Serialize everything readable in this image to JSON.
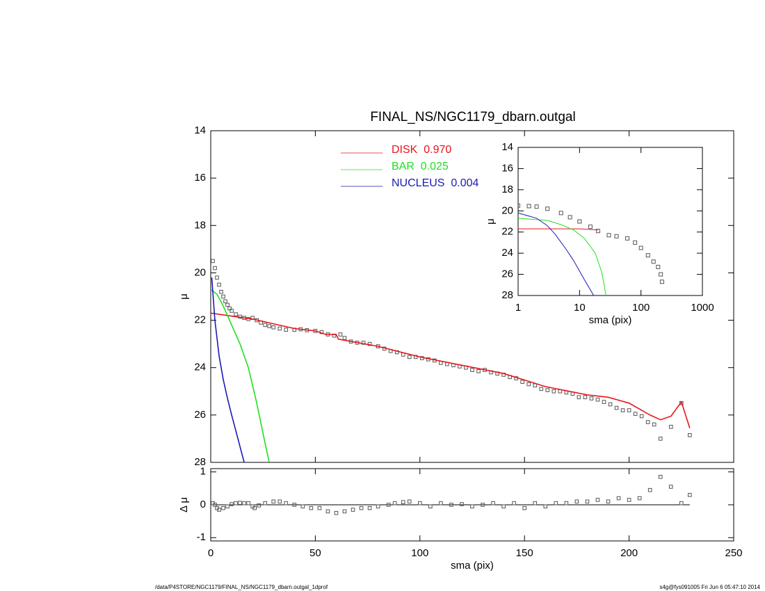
{
  "chart_data": [
    {
      "type": "line",
      "title": "FINAL_NS/NGC1179_dbarn.outgal",
      "ylabel": "μ",
      "xlim": [
        0,
        250
      ],
      "xticks": [
        0,
        50,
        100,
        150,
        200,
        250
      ],
      "ylim": [
        14,
        28
      ],
      "yticks": [
        14,
        16,
        18,
        20,
        22,
        24,
        26,
        28
      ],
      "yinverted": true,
      "series": [
        {
          "style": "markers",
          "color": "#555555",
          "x": [
            1,
            2,
            3,
            4,
            5,
            6,
            7,
            8,
            9,
            10,
            12,
            14,
            16,
            18,
            20,
            22,
            24,
            26,
            28,
            30,
            33,
            36,
            40,
            43,
            46,
            50,
            53,
            56,
            59,
            62,
            64,
            67,
            70,
            73,
            76,
            80,
            83,
            86,
            89,
            92,
            95,
            98,
            101,
            104,
            107,
            110,
            113,
            116,
            119,
            122,
            125,
            128,
            131,
            134,
            137,
            140,
            143,
            146,
            149,
            152,
            155,
            158,
            161,
            164,
            167,
            170,
            173,
            176,
            179,
            182,
            185,
            188,
            191,
            194,
            197,
            200,
            203,
            206,
            209,
            212,
            215,
            220,
            225,
            229
          ],
          "values": [
            19.5,
            19.8,
            20.2,
            20.5,
            20.8,
            21.0,
            21.2,
            21.35,
            21.5,
            21.6,
            21.75,
            21.85,
            21.9,
            21.95,
            21.9,
            22.0,
            22.1,
            22.2,
            22.25,
            22.3,
            22.35,
            22.4,
            22.4,
            22.38,
            22.42,
            22.45,
            22.5,
            22.6,
            22.65,
            22.6,
            22.75,
            22.9,
            22.95,
            22.95,
            23.0,
            23.1,
            23.2,
            23.3,
            23.35,
            23.45,
            23.55,
            23.55,
            23.6,
            23.65,
            23.7,
            23.8,
            23.85,
            23.9,
            23.95,
            24.0,
            24.1,
            24.15,
            24.1,
            24.2,
            24.25,
            24.3,
            24.4,
            24.45,
            24.6,
            24.7,
            24.75,
            24.9,
            24.95,
            25.0,
            25.0,
            25.05,
            25.1,
            25.25,
            25.25,
            25.3,
            25.35,
            25.45,
            25.55,
            25.7,
            25.8,
            25.8,
            25.95,
            26.05,
            26.3,
            26.4,
            27.0,
            26.5,
            25.5,
            26.85
          ]
        },
        {
          "style": "line",
          "name": "DISK  0.970",
          "color": "#e8141a",
          "x": [
            0,
            20,
            40,
            50,
            55,
            60,
            61,
            80,
            100,
            120,
            140,
            160,
            180,
            190,
            200,
            210,
            215,
            220,
            225,
            229
          ],
          "values": [
            21.7,
            21.95,
            22.35,
            22.45,
            22.6,
            22.6,
            22.8,
            23.1,
            23.55,
            23.9,
            24.25,
            24.8,
            25.15,
            25.25,
            25.5,
            26.0,
            26.2,
            26.05,
            25.45,
            26.55
          ]
        },
        {
          "style": "line",
          "name": "BAR  0.025",
          "color": "#1ee01e",
          "x": [
            0,
            3,
            6,
            10,
            14,
            18,
            22,
            26,
            28
          ],
          "values": [
            20.7,
            20.9,
            21.4,
            22.2,
            23.0,
            24.0,
            25.5,
            27.2,
            28.0
          ]
        },
        {
          "style": "line",
          "name": "NUCLEUS  0.004",
          "color": "#1a1ab4",
          "x": [
            0.5,
            2,
            4,
            6,
            8,
            10,
            13,
            16
          ],
          "values": [
            20.2,
            22.0,
            23.5,
            24.5,
            25.3,
            26.0,
            27.0,
            28.0
          ]
        }
      ]
    },
    {
      "type": "scatter",
      "xlabel": "sma (pix)",
      "ylabel": "Δ μ",
      "xlim": [
        0,
        250
      ],
      "xticks": [
        0,
        50,
        100,
        150,
        200,
        250
      ],
      "ylim": [
        -1.1,
        1.1
      ],
      "yticks": [
        -1,
        0,
        1
      ],
      "hline": 0,
      "series": [
        {
          "style": "markers",
          "color": "#555555",
          "x": [
            1,
            2,
            3,
            4,
            6,
            8,
            10,
            12,
            14,
            16,
            18,
            20,
            21,
            23,
            26,
            30,
            33,
            36,
            40,
            44,
            48,
            52,
            56,
            60,
            64,
            68,
            72,
            76,
            80,
            85,
            88,
            92,
            95,
            100,
            105,
            110,
            115,
            120,
            125,
            130,
            135,
            140,
            145,
            150,
            155,
            160,
            165,
            170,
            175,
            180,
            185,
            190,
            195,
            200,
            205,
            210,
            215,
            220,
            225,
            229
          ],
          "values": [
            0.05,
            0.0,
            -0.1,
            -0.15,
            -0.1,
            -0.05,
            0.02,
            0.05,
            0.06,
            0.05,
            0.05,
            -0.05,
            -0.1,
            -0.02,
            0.05,
            0.1,
            0.1,
            0.05,
            0.0,
            -0.05,
            -0.1,
            -0.1,
            -0.2,
            -0.25,
            -0.2,
            -0.15,
            -0.1,
            -0.1,
            -0.05,
            0.0,
            0.05,
            0.08,
            0.1,
            0.05,
            -0.05,
            0.05,
            0.0,
            0.02,
            -0.05,
            0.0,
            0.05,
            -0.05,
            0.05,
            -0.1,
            0.05,
            -0.05,
            0.05,
            0.05,
            0.1,
            0.1,
            0.15,
            0.1,
            0.2,
            0.15,
            0.2,
            0.45,
            0.85,
            0.55,
            0.05,
            0.3
          ]
        }
      ]
    },
    {
      "type": "line",
      "xlabel": "sma (pix)",
      "ylabel": "μ",
      "xlog": true,
      "xlim": [
        1,
        1000
      ],
      "xticks": [
        1,
        10,
        100,
        1000
      ],
      "ylim": [
        14,
        28
      ],
      "yticks": [
        14,
        16,
        18,
        20,
        22,
        24,
        26,
        28
      ],
      "yinverted": true,
      "series": [
        {
          "style": "markers",
          "color": "#555555",
          "x": [
            1,
            1.5,
            2,
            3,
            5,
            7,
            10,
            15,
            20,
            30,
            40,
            60,
            80,
            100,
            130,
            160,
            190,
            210,
            220
          ],
          "values": [
            19.5,
            19.55,
            19.6,
            19.8,
            20.2,
            20.6,
            21.0,
            21.5,
            21.9,
            22.3,
            22.4,
            22.6,
            23.0,
            23.5,
            24.2,
            24.8,
            25.3,
            26.0,
            26.7
          ]
        },
        {
          "style": "line",
          "color": "#e8141a",
          "x": [
            1,
            10,
            20
          ],
          "values": [
            21.7,
            21.7,
            21.8
          ]
        },
        {
          "style": "line",
          "color": "#1ee01e",
          "x": [
            1,
            3,
            5,
            8,
            12,
            18,
            23,
            27
          ],
          "values": [
            20.7,
            20.9,
            21.3,
            21.8,
            22.6,
            24.0,
            25.8,
            28
          ]
        },
        {
          "style": "line",
          "color": "#1a1ab4",
          "x": [
            1,
            2,
            3,
            4,
            6,
            8,
            12,
            17
          ],
          "values": [
            20.2,
            20.7,
            21.4,
            22.2,
            23.6,
            24.7,
            26.5,
            28
          ]
        }
      ]
    }
  ],
  "footer": {
    "left": "/data/P4STORE/NGC1179/FINAL_NS/NGC1179_dbarn.outgal_1dprof",
    "right": "s4g@fys091005  Fri Jun  6 05:47:10 2014"
  }
}
